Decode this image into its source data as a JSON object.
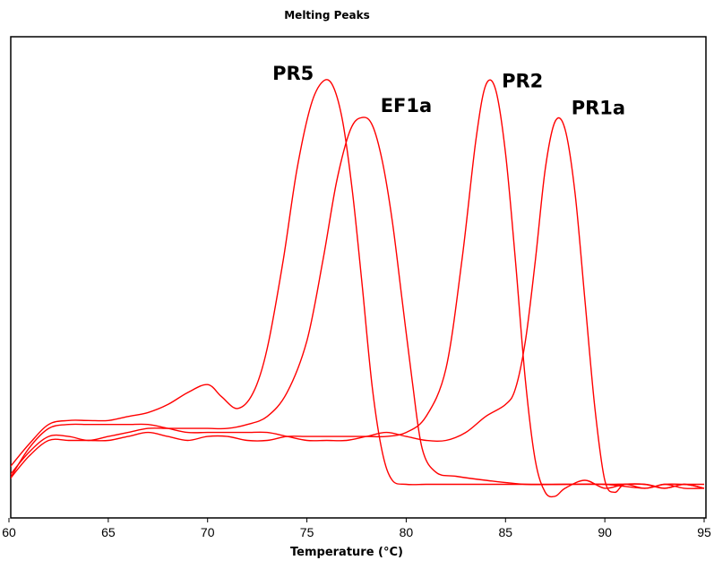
{
  "chart_data": {
    "type": "line",
    "title": "Melting Peaks",
    "xlabel": "Temperature (°C)",
    "ylabel": "",
    "xlim": [
      60,
      95
    ],
    "ylim": [
      -0.05,
      1.08
    ],
    "xticks": [
      60,
      65,
      70,
      75,
      80,
      85,
      90,
      95
    ],
    "grid": false,
    "line_color": "#ff0000",
    "series": [
      {
        "name": "PR5",
        "x": [
          60,
          61,
          62,
          63,
          64,
          65,
          66,
          67,
          68,
          69,
          70,
          70.7,
          71.5,
          72.3,
          73,
          73.8,
          74.5,
          75.2,
          75.8,
          76.3,
          76.8,
          77.3,
          77.8,
          78.3,
          78.8,
          79.3,
          80,
          81,
          82,
          84,
          86,
          88,
          90,
          92,
          93,
          94,
          95
        ],
        "y": [
          0.03,
          0.09,
          0.14,
          0.15,
          0.15,
          0.15,
          0.16,
          0.17,
          0.19,
          0.22,
          0.24,
          0.21,
          0.18,
          0.22,
          0.33,
          0.55,
          0.78,
          0.94,
          1.0,
          0.99,
          0.9,
          0.72,
          0.48,
          0.23,
          0.07,
          0.0,
          -0.01,
          -0.01,
          -0.01,
          -0.01,
          -0.01,
          -0.01,
          -0.01,
          -0.02,
          -0.01,
          -0.02,
          -0.02
        ]
      },
      {
        "name": "EF1a",
        "x": [
          60,
          61,
          62,
          63,
          64,
          65,
          66,
          67,
          68,
          69,
          70,
          71,
          72,
          73,
          74,
          75,
          75.8,
          76.5,
          77.2,
          77.8,
          78.3,
          78.8,
          79.3,
          79.8,
          80.3,
          80.8,
          81.5,
          82.5,
          84,
          86,
          88,
          90,
          92,
          93,
          94,
          95
        ],
        "y": [
          0.01,
          0.07,
          0.11,
          0.11,
          0.1,
          0.11,
          0.12,
          0.13,
          0.13,
          0.13,
          0.13,
          0.13,
          0.14,
          0.16,
          0.22,
          0.35,
          0.55,
          0.75,
          0.88,
          0.91,
          0.89,
          0.8,
          0.65,
          0.45,
          0.25,
          0.08,
          0.02,
          0.01,
          0.0,
          -0.01,
          -0.01,
          -0.01,
          -0.01,
          -0.02,
          -0.01,
          -0.02
        ]
      },
      {
        "name": "PR2",
        "x": [
          60,
          61,
          62,
          63,
          64,
          65,
          66,
          67,
          68,
          69,
          70,
          71,
          72,
          73,
          74,
          75,
          76,
          77,
          78,
          79,
          80,
          81,
          82,
          82.8,
          83.5,
          84,
          84.5,
          85,
          85.5,
          86,
          86.5,
          87,
          87.5,
          88,
          89,
          90,
          91,
          92,
          93,
          94,
          95
        ],
        "y": [
          0.0,
          0.06,
          0.1,
          0.1,
          0.1,
          0.1,
          0.11,
          0.12,
          0.11,
          0.1,
          0.11,
          0.11,
          0.1,
          0.1,
          0.11,
          0.11,
          0.11,
          0.11,
          0.11,
          0.11,
          0.12,
          0.16,
          0.28,
          0.55,
          0.85,
          0.99,
          0.98,
          0.82,
          0.55,
          0.25,
          0.05,
          -0.03,
          -0.04,
          -0.02,
          0.0,
          -0.02,
          -0.01,
          -0.01,
          -0.02,
          -0.01,
          -0.02
        ]
      },
      {
        "name": "PR1a",
        "x": [
          60,
          61,
          62,
          63,
          64,
          65,
          66,
          67,
          68,
          69,
          70,
          71,
          72,
          73,
          74,
          75,
          76,
          77,
          78,
          79,
          80,
          81,
          82,
          83,
          84,
          85,
          85.5,
          86,
          86.5,
          87,
          87.5,
          88,
          88.5,
          89,
          89.5,
          90,
          90.5,
          91,
          92,
          93,
          94,
          95
        ],
        "y": [
          0.0,
          0.08,
          0.13,
          0.14,
          0.14,
          0.14,
          0.14,
          0.14,
          0.13,
          0.12,
          0.12,
          0.12,
          0.12,
          0.12,
          0.11,
          0.1,
          0.1,
          0.1,
          0.11,
          0.12,
          0.11,
          0.1,
          0.1,
          0.12,
          0.16,
          0.19,
          0.23,
          0.35,
          0.55,
          0.78,
          0.9,
          0.88,
          0.72,
          0.45,
          0.18,
          0.0,
          -0.03,
          -0.01,
          -0.02,
          -0.01,
          -0.01,
          -0.01
        ]
      }
    ]
  }
}
